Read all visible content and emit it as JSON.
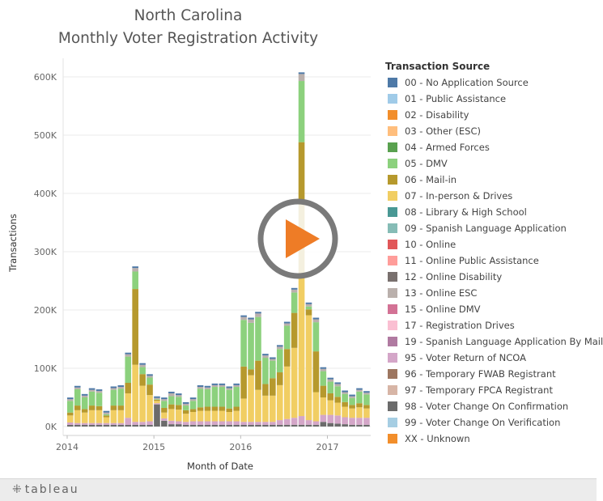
{
  "chart_data": {
    "type": "bar",
    "stacked": true,
    "title": [
      "North Carolina",
      "Monthly Voter Registration Activity"
    ],
    "xlabel": "Month of Date",
    "ylabel": "Transactions",
    "ylim": [
      0,
      620000
    ],
    "yticks": [
      0,
      100000,
      200000,
      300000,
      400000,
      500000,
      600000
    ],
    "ytick_labels": [
      "0K",
      "100K",
      "200K",
      "300K",
      "400K",
      "500K",
      "600K"
    ],
    "xtick_labels": [
      "2014",
      "2015",
      "2016",
      "2017"
    ],
    "grid": "horizontal",
    "legend_title": "Transaction Source",
    "legend_position": "right",
    "legend": [
      {
        "label": "00 - No Application Source",
        "color": "#4e79a7"
      },
      {
        "label": "01 - Public Assistance",
        "color": "#a0cbe8"
      },
      {
        "label": "02 - Disability",
        "color": "#f28e2b"
      },
      {
        "label": "03 - Other (ESC)",
        "color": "#ffbe7d"
      },
      {
        "label": "04 - Armed Forces",
        "color": "#59a14f"
      },
      {
        "label": "05 - DMV",
        "color": "#8cd17d"
      },
      {
        "label": "06 - Mail-in",
        "color": "#b6992d"
      },
      {
        "label": "07 - In-person & Drives",
        "color": "#f1ce63"
      },
      {
        "label": "08 - Library & High School",
        "color": "#499894"
      },
      {
        "label": "09 - Spanish Language Application",
        "color": "#86bcb6"
      },
      {
        "label": "10 - Online",
        "color": "#e15759"
      },
      {
        "label": "11 - Online Public Assistance",
        "color": "#ff9d9a"
      },
      {
        "label": "12 - Online Disability",
        "color": "#79706e"
      },
      {
        "label": "13 - Online ESC",
        "color": "#bab0ac"
      },
      {
        "label": "15 - Online DMV",
        "color": "#d37295"
      },
      {
        "label": "17 - Registration Drives",
        "color": "#fabfd2"
      },
      {
        "label": "19 - Spanish Language Application By Mail",
        "color": "#b07aa1"
      },
      {
        "label": "95 - Voter Return of NCOA",
        "color": "#d4a6c8"
      },
      {
        "label": "96 - Temporary FWAB Registrant",
        "color": "#9d7660"
      },
      {
        "label": "97 - Temporary FPCA Registrant",
        "color": "#d7b5a6"
      },
      {
        "label": "98 - Voter Change On Confirmation",
        "color": "#6b6b6b"
      },
      {
        "label": "99 - Voter Change On Verification",
        "color": "#a6cee3"
      },
      {
        "label": "XX - Unknown",
        "color": "#f28e2b"
      }
    ],
    "months": [
      "2014-01",
      "2014-02",
      "2014-03",
      "2014-04",
      "2014-05",
      "2014-06",
      "2014-07",
      "2014-08",
      "2014-09",
      "2014-10",
      "2014-11",
      "2014-12",
      "2015-01",
      "2015-02",
      "2015-03",
      "2015-04",
      "2015-05",
      "2015-06",
      "2015-07",
      "2015-08",
      "2015-09",
      "2015-10",
      "2015-11",
      "2015-12",
      "2016-01",
      "2016-02",
      "2016-03",
      "2016-04",
      "2016-05",
      "2016-06",
      "2016-07",
      "2016-08",
      "2016-09",
      "2016-10",
      "2016-11",
      "2016-12",
      "2017-01",
      "2017-02",
      "2017-03",
      "2017-04",
      "2017-05",
      "2017-06"
    ],
    "stacks": [
      {
        "no": 3000,
        "ncoa": 4000,
        "inperson": 12000,
        "mail": 5000,
        "dmv": 20000,
        "top": 3000
      },
      {
        "no": 3000,
        "ncoa": 3000,
        "inperson": 22000,
        "mail": 8000,
        "dmv": 28000,
        "top": 3000
      },
      {
        "no": 3000,
        "ncoa": 3000,
        "inperson": 18000,
        "mail": 6000,
        "dmv": 20000,
        "top": 3000
      },
      {
        "no": 3000,
        "ncoa": 3000,
        "inperson": 22000,
        "mail": 8000,
        "dmv": 24000,
        "top": 3000
      },
      {
        "no": 3000,
        "ncoa": 3000,
        "inperson": 22000,
        "mail": 7000,
        "dmv": 23000,
        "top": 3000
      },
      {
        "no": 3000,
        "ncoa": 3000,
        "inperson": 10000,
        "mail": 3000,
        "dmv": 2000,
        "top": 3000
      },
      {
        "no": 3000,
        "ncoa": 3000,
        "inperson": 22000,
        "mail": 8000,
        "dmv": 27000,
        "top": 3000
      },
      {
        "no": 3000,
        "ncoa": 3000,
        "inperson": 22000,
        "mail": 8000,
        "dmv": 29000,
        "top": 3000
      },
      {
        "no": 3000,
        "ncoa": 12000,
        "inperson": 42000,
        "mail": 18000,
        "dmv": 45000,
        "top": 4000
      },
      {
        "no": 3000,
        "ncoa": 5000,
        "inperson": 98000,
        "mail": 130000,
        "dmv": 30000,
        "top": 6000
      },
      {
        "no": 3000,
        "ncoa": 5000,
        "inperson": 62000,
        "mail": 20000,
        "dmv": 12000,
        "top": 4000
      },
      {
        "no": 3000,
        "ncoa": 6000,
        "inperson": 45000,
        "mail": 18000,
        "dmv": 12000,
        "top": 3000
      },
      {
        "no": 38000,
        "ncoa": 2000,
        "inperson": 4000,
        "mail": 2000,
        "dmv": 1000,
        "top": 2000
      },
      {
        "no": 10000,
        "ncoa": 4000,
        "inperson": 10000,
        "mail": 8000,
        "dmv": 12000,
        "top": 3000
      },
      {
        "no": 4000,
        "ncoa": 6000,
        "inperson": 20000,
        "mail": 8000,
        "dmv": 14000,
        "top": 5000
      },
      {
        "no": 4000,
        "ncoa": 5000,
        "inperson": 20000,
        "mail": 8000,
        "dmv": 14000,
        "top": 3000
      },
      {
        "no": 3000,
        "ncoa": 5000,
        "inperson": 14000,
        "mail": 6000,
        "dmv": 8000,
        "top": 3000
      },
      {
        "no": 3000,
        "ncoa": 6000,
        "inperson": 16000,
        "mail": 5000,
        "dmv": 14000,
        "top": 3000
      },
      {
        "no": 3000,
        "ncoa": 6000,
        "inperson": 18000,
        "mail": 6000,
        "dmv": 32000,
        "top": 3000
      },
      {
        "no": 3000,
        "ncoa": 6000,
        "inperson": 18000,
        "mail": 7000,
        "dmv": 30000,
        "top": 3000
      },
      {
        "no": 3000,
        "ncoa": 6000,
        "inperson": 18000,
        "mail": 7000,
        "dmv": 34000,
        "top": 3000
      },
      {
        "no": 3000,
        "ncoa": 6000,
        "inperson": 18000,
        "mail": 7000,
        "dmv": 34000,
        "top": 3000
      },
      {
        "no": 3000,
        "ncoa": 6000,
        "inperson": 16000,
        "mail": 6000,
        "dmv": 32000,
        "top": 3000
      },
      {
        "no": 3000,
        "ncoa": 6000,
        "inperson": 18000,
        "mail": 7000,
        "dmv": 34000,
        "top": 3000
      },
      {
        "no": 3000,
        "ncoa": 5000,
        "inperson": 40000,
        "mail": 55000,
        "dmv": 80000,
        "top": 5000
      },
      {
        "no": 3000,
        "ncoa": 5000,
        "inperson": 80000,
        "mail": 10000,
        "dmv": 80000,
        "top": 6000
      },
      {
        "no": 3000,
        "ncoa": 5000,
        "inperson": 55000,
        "mail": 50000,
        "dmv": 75000,
        "top": 6000
      },
      {
        "no": 3000,
        "ncoa": 5000,
        "inperson": 45000,
        "mail": 20000,
        "dmv": 45000,
        "top": 4000
      },
      {
        "no": 3000,
        "ncoa": 5000,
        "inperson": 45000,
        "mail": 30000,
        "dmv": 30000,
        "top": 3000
      },
      {
        "no": 3000,
        "ncoa": 8000,
        "inperson": 60000,
        "mail": 22000,
        "dmv": 40000,
        "top": 4000
      },
      {
        "no": 3000,
        "ncoa": 10000,
        "inperson": 90000,
        "mail": 30000,
        "dmv": 40000,
        "top": 4000
      },
      {
        "no": 3000,
        "ncoa": 12000,
        "inperson": 120000,
        "mail": 60000,
        "dmv": 35000,
        "top": 5000
      },
      {
        "no": 3000,
        "ncoa": 15000,
        "inperson": 240000,
        "mail": 230000,
        "dmv": 105000,
        "top": 12000
      },
      {
        "no": 3000,
        "ncoa": 8000,
        "inperson": 180000,
        "mail": 10000,
        "dmv": 5000,
        "top": 4000
      },
      {
        "no": 3000,
        "ncoa": 6000,
        "inperson": 50000,
        "mail": 70000,
        "dmv": 50000,
        "top": 5000
      },
      {
        "no": 8000,
        "ncoa": 12000,
        "inperson": 30000,
        "mail": 20000,
        "dmv": 25000,
        "top": 4000
      },
      {
        "no": 6000,
        "ncoa": 14000,
        "inperson": 25000,
        "mail": 12000,
        "dmv": 20000,
        "top": 4000
      },
      {
        "no": 5000,
        "ncoa": 14000,
        "inperson": 22000,
        "mail": 10000,
        "dmv": 18000,
        "top": 4000
      },
      {
        "no": 4000,
        "ncoa": 12000,
        "inperson": 18000,
        "mail": 8000,
        "dmv": 14000,
        "top": 3000
      },
      {
        "no": 3000,
        "ncoa": 12000,
        "inperson": 16000,
        "mail": 6000,
        "dmv": 12000,
        "top": 3000
      },
      {
        "no": 3000,
        "ncoa": 12000,
        "inperson": 18000,
        "mail": 7000,
        "dmv": 20000,
        "top": 3000
      },
      {
        "no": 3000,
        "ncoa": 12000,
        "inperson": 16000,
        "mail": 6000,
        "dmv": 18000,
        "top": 3000
      }
    ]
  },
  "footer": {
    "logo_text": "tableau"
  }
}
